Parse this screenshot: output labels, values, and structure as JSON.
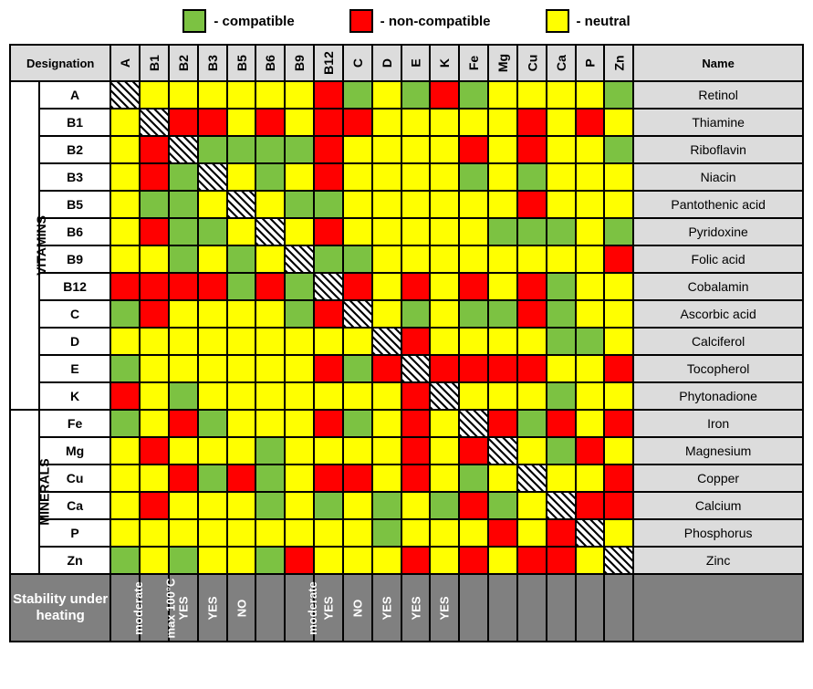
{
  "colors": {
    "compatible": "#7cc242",
    "non_compatible": "#ff0000",
    "neutral": "#ffff00",
    "header_bg": "#dcdcdc",
    "stability_bg": "#808080",
    "border": "#000000",
    "page_bg": "#ffffff"
  },
  "legend": {
    "compatible": "- compatible",
    "non_compatible": "- non-compatible",
    "neutral": "- neutral"
  },
  "headers": {
    "designation": "Designation",
    "name": "Name",
    "stability": "Stability under heating"
  },
  "groups": {
    "vitamins": "VITAMINS",
    "minerals": "MINERALS"
  },
  "columns": [
    "A",
    "B1",
    "B2",
    "B3",
    "B5",
    "B6",
    "B9",
    "B12",
    "C",
    "D",
    "E",
    "K",
    "Fe",
    "Mg",
    "Cu",
    "Ca",
    "P",
    "Zn"
  ],
  "cell_value_map": {
    "G": "compatible",
    "R": "non_compatible",
    "Y": "neutral",
    "D": "diag"
  },
  "rows": [
    {
      "group": "vitamins",
      "code": "A",
      "name": "Retinol",
      "cells": [
        "D",
        "Y",
        "Y",
        "Y",
        "Y",
        "Y",
        "Y",
        "R",
        "G",
        "Y",
        "G",
        "R",
        "G",
        "Y",
        "Y",
        "Y",
        "Y",
        "G"
      ]
    },
    {
      "group": "vitamins",
      "code": "B1",
      "name": "Thiamine",
      "cells": [
        "Y",
        "D",
        "R",
        "R",
        "Y",
        "R",
        "Y",
        "R",
        "R",
        "Y",
        "Y",
        "Y",
        "Y",
        "Y",
        "R",
        "Y",
        "R",
        "Y"
      ]
    },
    {
      "group": "vitamins",
      "code": "B2",
      "name": "Riboflavin",
      "cells": [
        "Y",
        "R",
        "D",
        "G",
        "G",
        "G",
        "G",
        "R",
        "Y",
        "Y",
        "Y",
        "Y",
        "R",
        "Y",
        "R",
        "Y",
        "Y",
        "G"
      ]
    },
    {
      "group": "vitamins",
      "code": "B3",
      "name": "Niacin",
      "cells": [
        "Y",
        "R",
        "G",
        "D",
        "Y",
        "G",
        "Y",
        "R",
        "Y",
        "Y",
        "Y",
        "Y",
        "G",
        "Y",
        "G",
        "Y",
        "Y",
        "Y"
      ]
    },
    {
      "group": "vitamins",
      "code": "B5",
      "name": "Pantothenic acid",
      "cells": [
        "Y",
        "G",
        "G",
        "Y",
        "D",
        "Y",
        "G",
        "G",
        "Y",
        "Y",
        "Y",
        "Y",
        "Y",
        "Y",
        "R",
        "Y",
        "Y",
        "Y"
      ]
    },
    {
      "group": "vitamins",
      "code": "B6",
      "name": "Pyridoxine",
      "cells": [
        "Y",
        "R",
        "G",
        "G",
        "Y",
        "D",
        "Y",
        "R",
        "Y",
        "Y",
        "Y",
        "Y",
        "Y",
        "G",
        "G",
        "G",
        "Y",
        "G"
      ]
    },
    {
      "group": "vitamins",
      "code": "B9",
      "name": "Folic acid",
      "cells": [
        "Y",
        "Y",
        "G",
        "Y",
        "G",
        "Y",
        "D",
        "G",
        "G",
        "Y",
        "Y",
        "Y",
        "Y",
        "Y",
        "Y",
        "Y",
        "Y",
        "R"
      ]
    },
    {
      "group": "vitamins",
      "code": "B12",
      "name": "Cobalamin",
      "cells": [
        "R",
        "R",
        "R",
        "R",
        "G",
        "R",
        "G",
        "D",
        "R",
        "Y",
        "R",
        "Y",
        "R",
        "Y",
        "R",
        "G",
        "Y",
        "Y"
      ]
    },
    {
      "group": "vitamins",
      "code": "C",
      "name": "Ascorbic acid",
      "cells": [
        "G",
        "R",
        "Y",
        "Y",
        "Y",
        "Y",
        "G",
        "R",
        "D",
        "Y",
        "G",
        "Y",
        "G",
        "G",
        "R",
        "G",
        "Y",
        "Y"
      ]
    },
    {
      "group": "vitamins",
      "code": "D",
      "name": "Calciferol",
      "cells": [
        "Y",
        "Y",
        "Y",
        "Y",
        "Y",
        "Y",
        "Y",
        "Y",
        "Y",
        "D",
        "R",
        "Y",
        "Y",
        "Y",
        "Y",
        "G",
        "G",
        "Y"
      ]
    },
    {
      "group": "vitamins",
      "code": "E",
      "name": "Tocopherol",
      "cells": [
        "G",
        "Y",
        "Y",
        "Y",
        "Y",
        "Y",
        "Y",
        "R",
        "G",
        "R",
        "D",
        "R",
        "R",
        "R",
        "R",
        "Y",
        "Y",
        "R"
      ]
    },
    {
      "group": "vitamins",
      "code": "K",
      "name": "Phytonadione",
      "cells": [
        "R",
        "Y",
        "G",
        "Y",
        "Y",
        "Y",
        "Y",
        "Y",
        "Y",
        "Y",
        "R",
        "D",
        "Y",
        "Y",
        "Y",
        "G",
        "Y",
        "Y"
      ]
    },
    {
      "group": "minerals",
      "code": "Fe",
      "name": "Iron",
      "cells": [
        "G",
        "Y",
        "R",
        "G",
        "Y",
        "Y",
        "Y",
        "R",
        "G",
        "Y",
        "R",
        "Y",
        "D",
        "R",
        "G",
        "R",
        "Y",
        "R"
      ]
    },
    {
      "group": "minerals",
      "code": "Mg",
      "name": "Magnesium",
      "cells": [
        "Y",
        "R",
        "Y",
        "Y",
        "Y",
        "G",
        "Y",
        "Y",
        "Y",
        "Y",
        "R",
        "Y",
        "R",
        "D",
        "Y",
        "G",
        "R",
        "Y"
      ]
    },
    {
      "group": "minerals",
      "code": "Cu",
      "name": "Copper",
      "cells": [
        "Y",
        "Y",
        "R",
        "G",
        "R",
        "G",
        "Y",
        "R",
        "R",
        "Y",
        "R",
        "Y",
        "G",
        "Y",
        "D",
        "Y",
        "Y",
        "R"
      ]
    },
    {
      "group": "minerals",
      "code": "Ca",
      "name": "Calcium",
      "cells": [
        "Y",
        "R",
        "Y",
        "Y",
        "Y",
        "G",
        "Y",
        "G",
        "Y",
        "G",
        "Y",
        "G",
        "R",
        "G",
        "Y",
        "D",
        "R",
        "R"
      ]
    },
    {
      "group": "minerals",
      "code": "P",
      "name": "Phosphorus",
      "cells": [
        "Y",
        "Y",
        "Y",
        "Y",
        "Y",
        "Y",
        "Y",
        "Y",
        "Y",
        "G",
        "Y",
        "Y",
        "Y",
        "R",
        "Y",
        "R",
        "D",
        "Y"
      ]
    },
    {
      "group": "minerals",
      "code": "Zn",
      "name": "Zinc",
      "cells": [
        "G",
        "Y",
        "G",
        "Y",
        "Y",
        "G",
        "R",
        "Y",
        "Y",
        "Y",
        "R",
        "Y",
        "R",
        "Y",
        "R",
        "R",
        "Y",
        "D"
      ]
    }
  ],
  "stability": [
    "moderate",
    "max 100°C",
    "YES",
    "YES",
    "NO",
    "",
    "moderate",
    "YES",
    "NO",
    "YES",
    "YES",
    "YES",
    "",
    "",
    "",
    "",
    "",
    ""
  ]
}
